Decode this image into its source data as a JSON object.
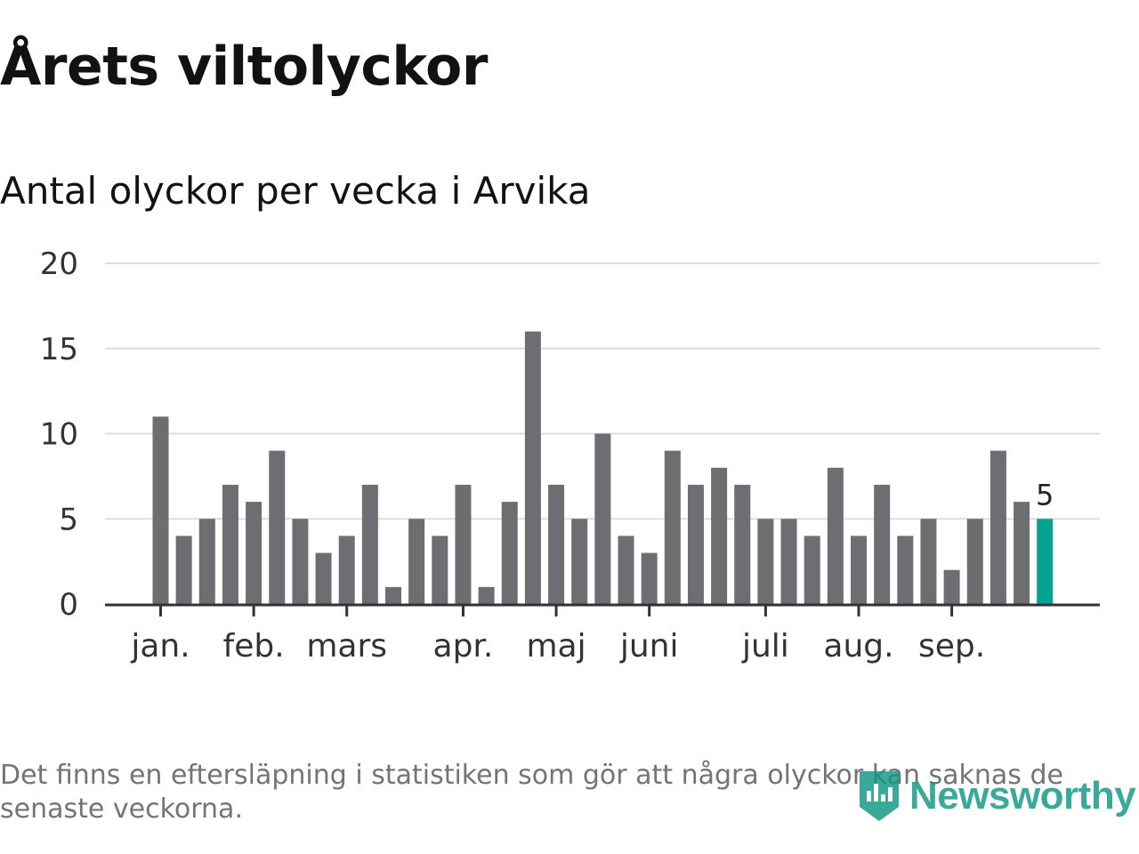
{
  "header": {
    "title": "Årets viltolyckor",
    "subtitle": "Antal olyckor per vecka i Arvika"
  },
  "chart_data": {
    "type": "bar",
    "title": "Årets viltolyckor",
    "subtitle": "Antal olyckor per vecka i Arvika",
    "xlabel": "",
    "ylabel": "",
    "ylim": [
      0,
      20
    ],
    "yticks": [
      "0",
      "5",
      "10",
      "15",
      "20"
    ],
    "grid": true,
    "values": [
      11,
      4,
      5,
      7,
      6,
      9,
      5,
      3,
      4,
      7,
      1,
      5,
      4,
      7,
      1,
      6,
      16,
      7,
      5,
      10,
      4,
      3,
      9,
      7,
      8,
      7,
      5,
      5,
      4,
      8,
      4,
      7,
      4,
      5,
      2,
      5,
      9,
      6,
      5
    ],
    "month_ticks": [
      {
        "label": "jan.",
        "week": 1
      },
      {
        "label": "feb.",
        "week": 5
      },
      {
        "label": "mars",
        "week": 9
      },
      {
        "label": "apr.",
        "week": 14
      },
      {
        "label": "maj",
        "week": 18
      },
      {
        "label": "juni",
        "week": 22
      },
      {
        "label": "juli",
        "week": 27
      },
      {
        "label": "aug.",
        "week": 31
      },
      {
        "label": "sep.",
        "week": 35
      }
    ],
    "highlight_last": true,
    "last_value_label": "5",
    "colors": {
      "bar": "#6e6d72",
      "highlight": "#06a293",
      "grid": "#dddddd",
      "axis": "#333333"
    }
  },
  "footnote": "Det finns en eftersläpning i statistiken som gör att några olyckor kan saknas de senaste veckorna.",
  "logo": {
    "text": "Newsworthy",
    "icon": "newsworthy-logo-icon"
  }
}
